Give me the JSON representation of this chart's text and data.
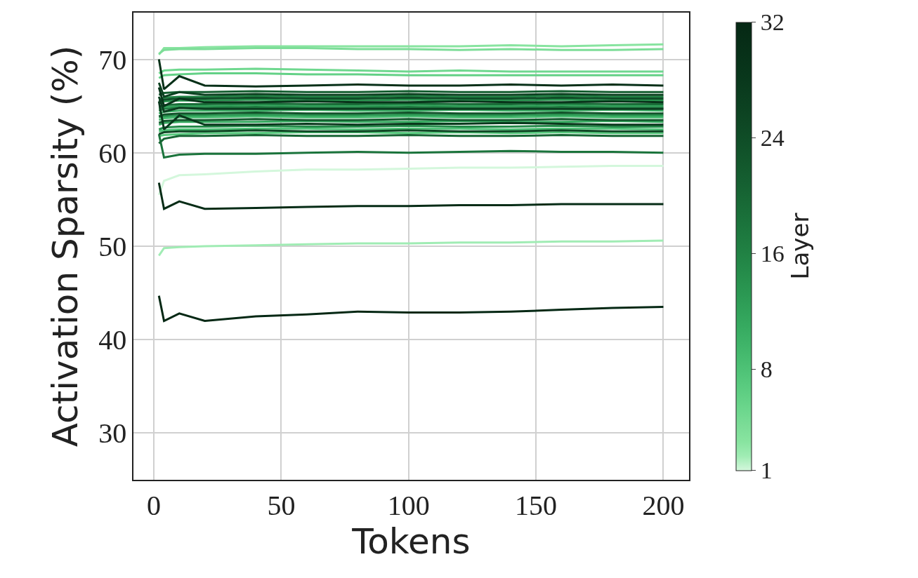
{
  "chart_data": {
    "type": "line",
    "xlabel": "Tokens",
    "ylabel": "Activation Sparsity (%)",
    "clabel": "Layer",
    "clim": [
      1,
      32
    ],
    "cticks": [
      1,
      8,
      16,
      24,
      32
    ],
    "x": [
      2,
      4,
      10,
      20,
      40,
      60,
      80,
      100,
      120,
      140,
      160,
      180,
      200
    ],
    "xlim": [
      -8,
      210
    ],
    "xticks": [
      0,
      50,
      100,
      150,
      200
    ],
    "ylim": [
      25,
      75
    ],
    "yticks": [
      30,
      40,
      50,
      60,
      70
    ],
    "grid": true,
    "marker": "none",
    "line_style": "solid",
    "series": [
      {
        "color": "#d4f7dc",
        "values": [
          55.5,
          57.0,
          57.6,
          57.7,
          58.0,
          58.2,
          58.2,
          58.3,
          58.4,
          58.4,
          58.5,
          58.6,
          58.6
        ]
      },
      {
        "color": "#a0ecb4",
        "values": [
          49.0,
          49.8,
          49.9,
          50.0,
          50.1,
          50.2,
          50.3,
          50.3,
          50.4,
          50.4,
          50.5,
          50.5,
          50.6
        ]
      },
      {
        "color": "#88e4a0",
        "values": [
          70.5,
          71.2,
          71.2,
          71.3,
          71.4,
          71.4,
          71.4,
          71.4,
          71.4,
          71.5,
          71.4,
          71.5,
          71.6
        ]
      },
      {
        "color": "#7ddd98",
        "values": [
          70.6,
          71.0,
          71.1,
          71.1,
          71.2,
          71.2,
          71.1,
          71.1,
          71.0,
          71.1,
          71.0,
          71.0,
          71.1
        ]
      },
      {
        "color": "#6fd88f",
        "values": [
          68.5,
          68.8,
          68.9,
          68.9,
          69.0,
          68.9,
          68.8,
          68.7,
          68.8,
          68.7,
          68.7,
          68.7,
          68.7
        ]
      },
      {
        "color": "#63d186",
        "values": [
          68.0,
          68.3,
          68.4,
          68.5,
          68.5,
          68.4,
          68.4,
          68.3,
          68.3,
          68.3,
          68.3,
          68.3,
          68.3
        ]
      },
      {
        "color": "#58ca7e",
        "values": [
          61.8,
          61.9,
          62.0,
          62.1,
          62.1,
          62.2,
          62.2,
          62.1,
          62.2,
          62.1,
          62.2,
          62.1,
          62.1
        ]
      },
      {
        "color": "#4ec276",
        "values": [
          62.3,
          62.4,
          62.5,
          62.5,
          62.6,
          62.6,
          62.5,
          62.6,
          62.6,
          62.5,
          62.6,
          62.6,
          62.5
        ]
      },
      {
        "color": "#45ba6e",
        "values": [
          63.5,
          63.7,
          63.8,
          63.8,
          63.9,
          63.8,
          63.8,
          63.9,
          63.8,
          63.8,
          63.9,
          63.8,
          63.8
        ]
      },
      {
        "color": "#3db267",
        "values": [
          64.2,
          64.4,
          64.5,
          64.5,
          64.5,
          64.6,
          64.5,
          64.5,
          64.6,
          64.5,
          64.5,
          64.6,
          64.5
        ]
      },
      {
        "color": "#36aa60",
        "values": [
          63.0,
          63.2,
          63.3,
          63.3,
          63.3,
          63.4,
          63.3,
          63.3,
          63.4,
          63.3,
          63.3,
          63.4,
          63.3
        ]
      },
      {
        "color": "#31a25a",
        "values": [
          64.7,
          64.9,
          65.0,
          65.0,
          65.1,
          65.0,
          65.0,
          65.1,
          65.0,
          65.0,
          65.1,
          65.0,
          65.0
        ]
      },
      {
        "color": "#2c9a54",
        "values": [
          63.8,
          63.9,
          64.0,
          64.0,
          64.1,
          64.0,
          64.0,
          64.1,
          64.0,
          64.0,
          64.1,
          64.0,
          64.0
        ]
      },
      {
        "color": "#28924e",
        "values": [
          65.3,
          65.5,
          65.6,
          65.6,
          65.7,
          65.6,
          65.6,
          65.7,
          65.6,
          65.6,
          65.7,
          65.6,
          65.6
        ]
      },
      {
        "color": "#248a49",
        "values": [
          62.5,
          62.7,
          62.8,
          62.8,
          62.9,
          62.8,
          62.8,
          62.9,
          62.8,
          62.8,
          62.9,
          62.8,
          62.8
        ]
      },
      {
        "color": "#218244",
        "values": [
          65.7,
          65.9,
          66.0,
          66.0,
          66.1,
          66.0,
          66.0,
          66.1,
          66.0,
          66.0,
          66.1,
          66.0,
          66.0
        ]
      },
      {
        "color": "#1e7b40",
        "values": [
          64.5,
          64.7,
          64.8,
          64.8,
          64.9,
          64.8,
          64.8,
          64.9,
          64.8,
          64.8,
          64.9,
          64.8,
          64.8
        ]
      },
      {
        "color": "#1b743c",
        "values": [
          62.0,
          59.5,
          59.8,
          59.9,
          59.9,
          60.0,
          60.1,
          60.0,
          60.1,
          60.2,
          60.1,
          60.1,
          60.0
        ]
      },
      {
        "color": "#196d38",
        "values": [
          64.9,
          65.1,
          65.2,
          65.2,
          65.3,
          65.2,
          65.2,
          65.3,
          65.2,
          65.2,
          65.3,
          65.2,
          65.2
        ]
      },
      {
        "color": "#176634",
        "values": [
          61.0,
          61.5,
          61.8,
          61.8,
          61.9,
          61.8,
          61.8,
          61.9,
          61.8,
          61.8,
          61.9,
          61.8,
          61.8
        ]
      },
      {
        "color": "#155f31",
        "values": [
          66.2,
          66.4,
          66.5,
          66.5,
          66.6,
          66.5,
          66.5,
          66.6,
          66.5,
          66.5,
          66.6,
          66.5,
          66.5
        ]
      },
      {
        "color": "#13592d",
        "values": [
          63.2,
          63.4,
          63.5,
          63.5,
          63.6,
          63.5,
          63.5,
          63.6,
          63.5,
          63.5,
          63.6,
          63.5,
          63.5
        ]
      },
      {
        "color": "#11532a",
        "values": [
          63.9,
          64.1,
          64.2,
          64.2,
          64.3,
          64.2,
          64.2,
          64.3,
          64.2,
          64.2,
          64.3,
          64.2,
          64.2
        ]
      },
      {
        "color": "#0f4d27",
        "values": [
          65.5,
          65.7,
          65.8,
          65.8,
          65.9,
          65.8,
          65.8,
          65.9,
          65.8,
          65.8,
          65.9,
          65.8,
          65.8
        ]
      },
      {
        "color": "#0e4724",
        "values": [
          62.0,
          62.2,
          62.3,
          62.3,
          62.4,
          62.3,
          62.3,
          62.4,
          62.3,
          62.3,
          62.4,
          62.3,
          62.3
        ]
      },
      {
        "color": "#0c4221",
        "values": [
          67.5,
          66.0,
          66.5,
          66.2,
          66.3,
          66.2,
          66.2,
          66.3,
          66.2,
          66.2,
          66.3,
          66.2,
          66.2
        ]
      },
      {
        "color": "#0b3d1f",
        "values": [
          66.0,
          64.4,
          64.8,
          64.7,
          64.7,
          64.7,
          64.7,
          64.7,
          64.7,
          64.7,
          64.7,
          64.7,
          64.7
        ]
      },
      {
        "color": "#09381c",
        "values": [
          65.5,
          62.5,
          64.0,
          63.0,
          63.0,
          63.1,
          63.0,
          63.1,
          63.1,
          63.2,
          63.1,
          63.0,
          63.0
        ]
      },
      {
        "color": "#08341a",
        "values": [
          67.0,
          65.0,
          65.8,
          65.4,
          65.4,
          65.5,
          65.4,
          65.4,
          65.5,
          65.4,
          65.4,
          65.5,
          65.4
        ]
      },
      {
        "color": "#073018",
        "values": [
          70.0,
          66.8,
          68.2,
          67.2,
          67.1,
          67.2,
          67.3,
          67.2,
          67.2,
          67.3,
          67.2,
          67.3,
          67.2
        ]
      },
      {
        "color": "#062c16",
        "values": [
          56.8,
          54.0,
          54.8,
          54.0,
          54.1,
          54.2,
          54.3,
          54.3,
          54.4,
          54.4,
          54.5,
          54.5,
          54.5
        ]
      },
      {
        "color": "#052814",
        "values": [
          44.7,
          42.0,
          42.8,
          42.0,
          42.5,
          42.7,
          43.0,
          42.9,
          42.9,
          43.0,
          43.2,
          43.4,
          43.5
        ]
      }
    ]
  }
}
